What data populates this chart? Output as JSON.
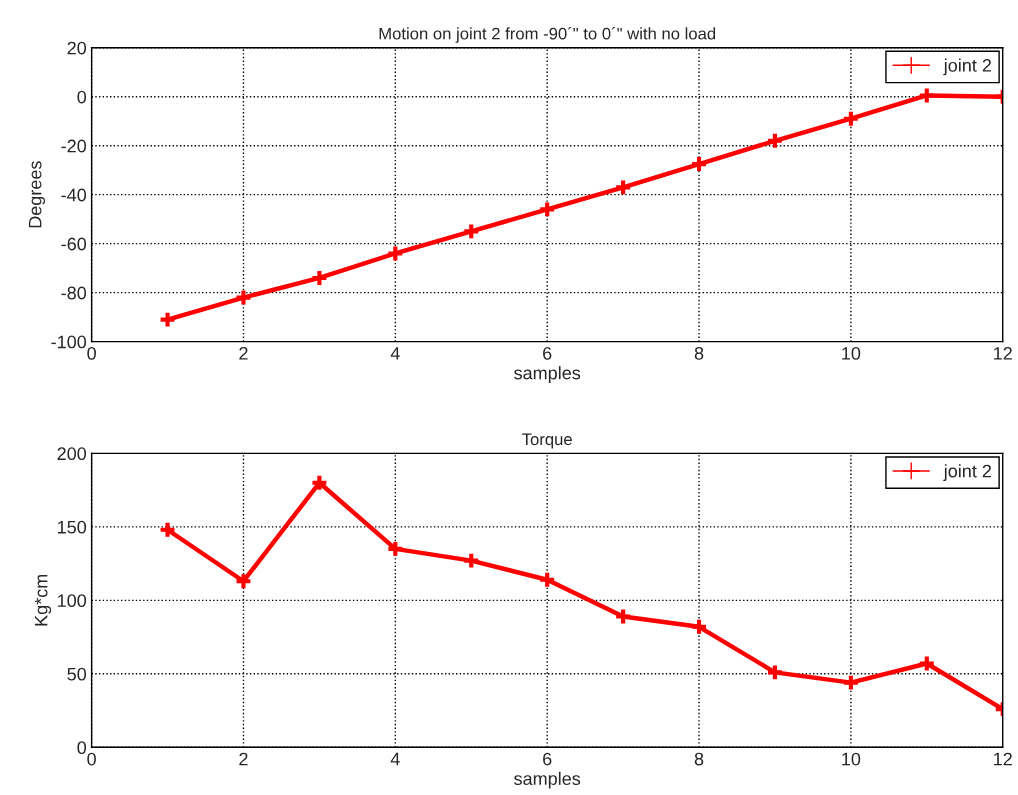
{
  "chart_data": [
    {
      "type": "line",
      "title": "Motion on joint 2 from -90´\" to 0´\" with no load",
      "xlabel": "samples",
      "ylabel": "Degrees",
      "x": [
        1,
        2,
        3,
        4,
        5,
        6,
        7,
        8,
        9,
        10,
        11,
        12
      ],
      "series": [
        {
          "name": "joint 2",
          "color": "#ff0000",
          "values": [
            -91,
            -82,
            -74,
            -64,
            -55,
            -46,
            -37,
            -27.5,
            -18,
            -9,
            0.5,
            0
          ]
        }
      ],
      "xlim": [
        0,
        12
      ],
      "xticks": [
        0,
        2,
        4,
        6,
        8,
        10,
        12
      ],
      "ylim": [
        -100,
        20
      ],
      "yticks": [
        -100,
        -80,
        -60,
        -40,
        -20,
        0,
        20
      ],
      "grid": true,
      "legend": "top right",
      "marker": "cross",
      "line_style": "solid"
    },
    {
      "type": "line",
      "title": "Torque",
      "xlabel": "samples",
      "ylabel": "Kg*cm",
      "x": [
        1,
        2,
        3,
        4,
        5,
        6,
        7,
        8,
        9,
        10,
        11,
        12
      ],
      "series": [
        {
          "name": "joint 2",
          "color": "#ff0000",
          "values": [
            148,
            113,
            180,
            135,
            127,
            114,
            89,
            82,
            51,
            44,
            57,
            26
          ]
        }
      ],
      "xlim": [
        0,
        12
      ],
      "xticks": [
        0,
        2,
        4,
        6,
        8,
        10,
        12
      ],
      "ylim": [
        0,
        200
      ],
      "yticks": [
        0,
        50,
        100,
        150,
        200
      ],
      "grid": true,
      "legend": "top right",
      "marker": "cross",
      "line_style": "solid"
    }
  ]
}
